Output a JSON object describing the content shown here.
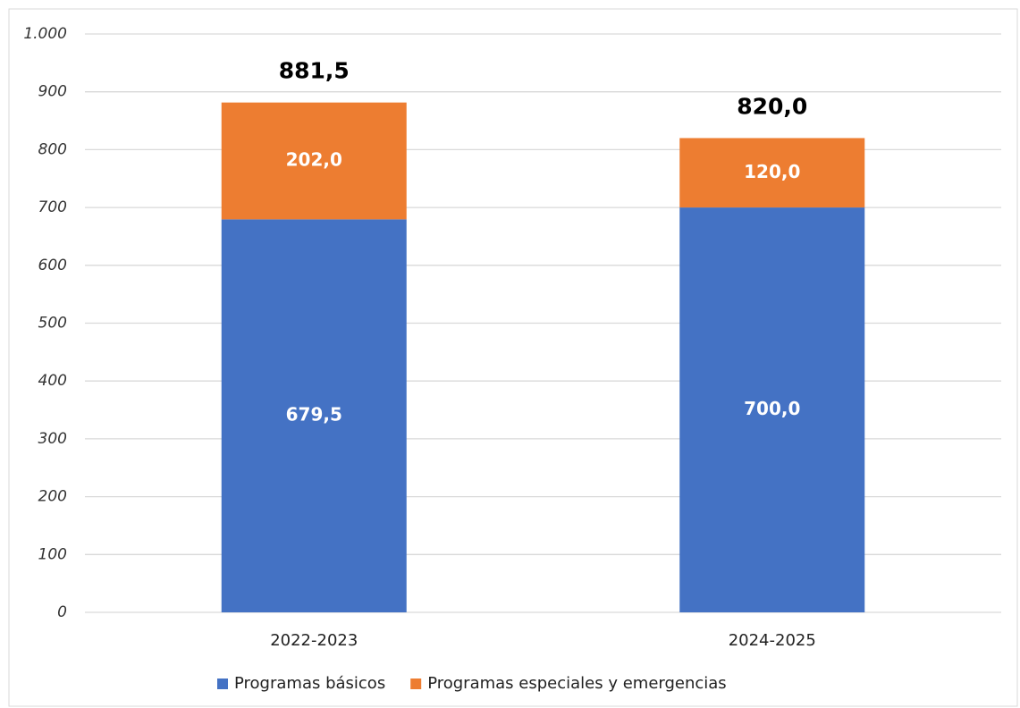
{
  "chart_data": {
    "type": "stacked_bar",
    "categories": [
      "2022-2023",
      "2024-2025"
    ],
    "series": [
      {
        "name": "Programas básicos",
        "color": "#4472c4",
        "values": [
          679.5,
          700.0
        ],
        "value_labels": [
          "679,5",
          "700,0"
        ]
      },
      {
        "name": "Programas especiales y emergencias",
        "color": "#ed7d31",
        "values": [
          202.0,
          120.0
        ],
        "value_labels": [
          "202,0",
          "120,0"
        ]
      }
    ],
    "total_labels": [
      "881,5",
      "820,0"
    ],
    "ylim": [
      0,
      1000
    ],
    "yticks": [
      0,
      100,
      200,
      300,
      400,
      500,
      600,
      700,
      800,
      900,
      {
        "value": 1000,
        "label": "1.000"
      }
    ],
    "grid": true,
    "legend": "bottom"
  }
}
